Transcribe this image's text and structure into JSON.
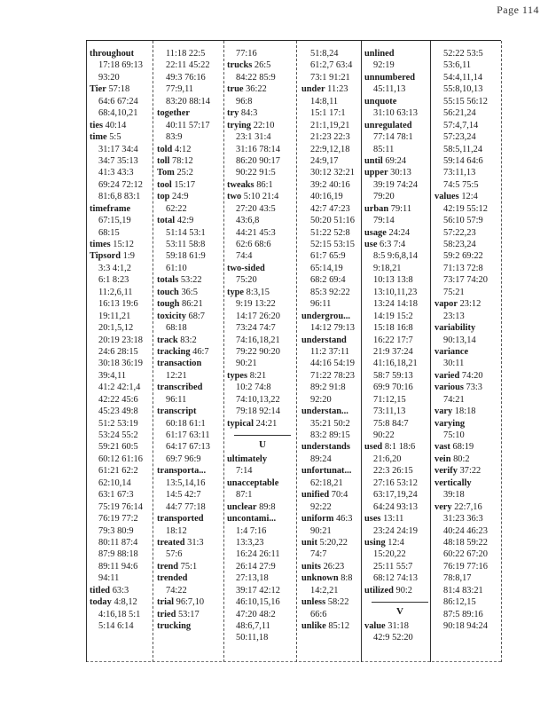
{
  "header": {
    "page_label": "Page 114"
  },
  "columns": [
    [
      {
        "term": "throughout",
        "refs": ""
      },
      {
        "refs": "17:18 69:13"
      },
      {
        "refs": "93:20"
      },
      {
        "term": "Tier",
        "refs": "57:18"
      },
      {
        "refs": "64:6 67:24"
      },
      {
        "refs": "68:4,10,21"
      },
      {
        "term": "ties",
        "refs": "40:14"
      },
      {
        "term": "time",
        "refs": "5:5"
      },
      {
        "refs": "31:17 34:4"
      },
      {
        "refs": "34:7 35:13"
      },
      {
        "refs": "41:3 43:3"
      },
      {
        "refs": "69:24 72:12"
      },
      {
        "refs": "81:6,8 83:1"
      },
      {
        "term": "timeframe",
        "refs": ""
      },
      {
        "refs": "67:15,19"
      },
      {
        "refs": "68:15"
      },
      {
        "term": "times",
        "refs": "15:12"
      },
      {
        "term": "Tipsord",
        "refs": "1:9"
      },
      {
        "refs": "3:3 4:1,2"
      },
      {
        "refs": "6:1 8:23"
      },
      {
        "refs": "11:2,6,11"
      },
      {
        "refs": "16:13 19:6"
      },
      {
        "refs": "19:11,21"
      },
      {
        "refs": "20:1,5,12"
      },
      {
        "refs": "20:19 23:18"
      },
      {
        "refs": "24:6 28:15"
      },
      {
        "refs": "30:18 36:19"
      },
      {
        "refs": "39:4,11"
      },
      {
        "refs": "41:2 42:1,4"
      },
      {
        "refs": "42:22 45:6"
      },
      {
        "refs": "45:23 49:8"
      },
      {
        "refs": "51:2 53:19"
      },
      {
        "refs": "53:24 55:2"
      },
      {
        "refs": "59:21 60:5"
      },
      {
        "refs": "60:12 61:16"
      },
      {
        "refs": "61:21 62:2"
      },
      {
        "refs": "62:10,14"
      },
      {
        "refs": "63:1 67:3"
      },
      {
        "refs": "75:19 76:14"
      },
      {
        "refs": "76:19 77:2"
      },
      {
        "refs": "79:3 80:9"
      },
      {
        "refs": "80:11 87:4"
      },
      {
        "refs": "87:9 88:18"
      },
      {
        "refs": "89:11 94:6"
      },
      {
        "refs": "94:11"
      },
      {
        "term": "titled",
        "refs": "63:3"
      },
      {
        "term": "today",
        "refs": "4:8,12"
      },
      {
        "refs": "4:16,18 5:1"
      },
      {
        "refs": "5:14 6:14"
      }
    ],
    [
      {
        "refs": "11:18 22:5"
      },
      {
        "refs": "22:11 45:22"
      },
      {
        "refs": "49:3 76:16"
      },
      {
        "refs": "77:9,11"
      },
      {
        "refs": "83:20 88:14"
      },
      {
        "term": "together",
        "refs": ""
      },
      {
        "refs": "40:11 57:17"
      },
      {
        "refs": "83:9"
      },
      {
        "term": "told",
        "refs": "4:12"
      },
      {
        "term": "toll",
        "refs": "78:12"
      },
      {
        "term": "Tom",
        "refs": "25:2"
      },
      {
        "term": "tool",
        "refs": "15:17"
      },
      {
        "term": "top",
        "refs": "24:9"
      },
      {
        "refs": "62:22"
      },
      {
        "term": "total",
        "refs": "42:9"
      },
      {
        "refs": "51:14 53:1"
      },
      {
        "refs": "53:11 58:8"
      },
      {
        "refs": "59:18 61:9"
      },
      {
        "refs": "61:10"
      },
      {
        "term": "totals",
        "refs": "53:22"
      },
      {
        "term": "touch",
        "refs": "36:5"
      },
      {
        "term": "tough",
        "refs": "86:21"
      },
      {
        "term": "toxicity",
        "refs": "68:7"
      },
      {
        "refs": "68:18"
      },
      {
        "term": "track",
        "refs": "83:2"
      },
      {
        "term": "tracking",
        "refs": "46:7"
      },
      {
        "term": "transaction",
        "refs": ""
      },
      {
        "refs": "12:21"
      },
      {
        "term": "transcribed",
        "refs": ""
      },
      {
        "refs": "96:11"
      },
      {
        "term": "transcript",
        "refs": ""
      },
      {
        "refs": "60:18 61:1"
      },
      {
        "refs": "61:17 63:11"
      },
      {
        "refs": "64:17 67:13"
      },
      {
        "refs": "69:7 96:9"
      },
      {
        "term": "transporta...",
        "refs": ""
      },
      {
        "refs": "13:5,14,16"
      },
      {
        "refs": "14:5 42:7"
      },
      {
        "refs": "44:7 77:18"
      },
      {
        "term": "transported",
        "refs": ""
      },
      {
        "refs": "18:12"
      },
      {
        "term": "treated",
        "refs": "31:3"
      },
      {
        "refs": "57:6"
      },
      {
        "term": "trend",
        "refs": "75:1"
      },
      {
        "term": "trended",
        "refs": ""
      },
      {
        "refs": "74:22"
      },
      {
        "term": "trial",
        "refs": "96:7,10"
      },
      {
        "term": "tried",
        "refs": "53:17"
      },
      {
        "term": "trucking",
        "refs": ""
      }
    ],
    [
      {
        "refs": "77:16"
      },
      {
        "term": "trucks",
        "refs": "26:5"
      },
      {
        "refs": "84:22 85:9"
      },
      {
        "term": "true",
        "refs": "36:22"
      },
      {
        "refs": "96:8"
      },
      {
        "term": "try",
        "refs": "84:3"
      },
      {
        "term": "trying",
        "refs": "22:10"
      },
      {
        "refs": "23:1 31:4"
      },
      {
        "refs": "31:16 78:14"
      },
      {
        "refs": "86:20 90:17"
      },
      {
        "refs": "90:22 91:5"
      },
      {
        "term": "tweaks",
        "refs": "86:1"
      },
      {
        "term": "two",
        "refs": "5:10 21:4"
      },
      {
        "refs": "27:20 43:5"
      },
      {
        "refs": "43:6,8"
      },
      {
        "refs": "44:21 45:3"
      },
      {
        "refs": "62:6 68:6"
      },
      {
        "refs": "74:4"
      },
      {
        "term": "two-sided",
        "refs": ""
      },
      {
        "refs": "75:20"
      },
      {
        "term": "type",
        "refs": "8:3,15"
      },
      {
        "refs": "9:19 13:22"
      },
      {
        "refs": "14:17 26:20"
      },
      {
        "refs": "73:24 74:7"
      },
      {
        "refs": "74:16,18,21"
      },
      {
        "refs": "79:22 90:20"
      },
      {
        "refs": "90:21"
      },
      {
        "term": "types",
        "refs": "8:21"
      },
      {
        "refs": "10:2 74:8"
      },
      {
        "refs": "74:10,13,22"
      },
      {
        "refs": "79:18 92:14"
      },
      {
        "term": "typical",
        "refs": "24:21"
      },
      {
        "section": "U"
      },
      {
        "term": "ultimately",
        "refs": ""
      },
      {
        "refs": "7:14"
      },
      {
        "term": "unacceptable",
        "refs": ""
      },
      {
        "refs": "87:1"
      },
      {
        "term": "unclear",
        "refs": "89:8"
      },
      {
        "term": "uncontami...",
        "refs": ""
      },
      {
        "refs": "1:4 7:16"
      },
      {
        "refs": "13:3,23"
      },
      {
        "refs": "16:24 26:11"
      },
      {
        "refs": "26:14 27:9"
      },
      {
        "refs": "27:13,18"
      },
      {
        "refs": "39:17 42:12"
      },
      {
        "refs": "46:10,15,16"
      },
      {
        "refs": "47:20 48:2"
      },
      {
        "refs": "48:6,7,11"
      },
      {
        "refs": "50:11,18"
      }
    ],
    [
      {
        "refs": "51:8,24"
      },
      {
        "refs": "61:2,7 63:4"
      },
      {
        "refs": "73:1 91:21"
      },
      {
        "term": "under",
        "refs": "11:23"
      },
      {
        "refs": "14:8,11"
      },
      {
        "refs": "15:1 17:1"
      },
      {
        "refs": "21:1,19,21"
      },
      {
        "refs": "21:23 22:3"
      },
      {
        "refs": "22:9,12,18"
      },
      {
        "refs": "24:9,17"
      },
      {
        "refs": "30:12 32:21"
      },
      {
        "refs": "39:2 40:16"
      },
      {
        "refs": "40:16,19"
      },
      {
        "refs": "42:7 47:23"
      },
      {
        "refs": "50:20 51:16"
      },
      {
        "refs": "51:22 52:8"
      },
      {
        "refs": "52:15 53:15"
      },
      {
        "refs": "61:7 65:9"
      },
      {
        "refs": "65:14,19"
      },
      {
        "refs": "68:2 69:4"
      },
      {
        "refs": "85:3 92:22"
      },
      {
        "refs": "96:11"
      },
      {
        "term": "undergrou...",
        "refs": ""
      },
      {
        "refs": "14:12 79:13"
      },
      {
        "term": "understand",
        "refs": ""
      },
      {
        "refs": "11:2 37:11"
      },
      {
        "refs": "44:16 54:19"
      },
      {
        "refs": "71:22 78:23"
      },
      {
        "refs": "89:2 91:8"
      },
      {
        "refs": "92:20"
      },
      {
        "term": "understan...",
        "refs": ""
      },
      {
        "refs": "35:21 50:2"
      },
      {
        "refs": "83:2 89:15"
      },
      {
        "term": "understands",
        "refs": ""
      },
      {
        "refs": "89:24"
      },
      {
        "term": "unfortunat...",
        "refs": ""
      },
      {
        "refs": "62:18,21"
      },
      {
        "term": "unified",
        "refs": "70:4"
      },
      {
        "refs": "92:22"
      },
      {
        "term": "uniform",
        "refs": "46:3"
      },
      {
        "refs": "90:21"
      },
      {
        "term": "unit",
        "refs": "5:20,22"
      },
      {
        "refs": "74:7"
      },
      {
        "term": "units",
        "refs": "26:23"
      },
      {
        "term": "unknown",
        "refs": "8:8"
      },
      {
        "refs": "14:2,21"
      },
      {
        "term": "unless",
        "refs": "58:22"
      },
      {
        "refs": "66:6"
      },
      {
        "term": "unlike",
        "refs": "85:12"
      }
    ],
    [
      {
        "term": "unlined",
        "refs": ""
      },
      {
        "refs": "92:19"
      },
      {
        "term": "unnumbered",
        "refs": ""
      },
      {
        "refs": "45:11,13"
      },
      {
        "term": "unquote",
        "refs": ""
      },
      {
        "refs": "31:10 63:13"
      },
      {
        "term": "unregulated",
        "refs": ""
      },
      {
        "refs": "77:14 78:1"
      },
      {
        "refs": "85:11"
      },
      {
        "term": "until",
        "refs": "69:24"
      },
      {
        "term": "upper",
        "refs": "30:13"
      },
      {
        "refs": "39:19 74:24"
      },
      {
        "refs": "79:20"
      },
      {
        "term": "urban",
        "refs": "79:11"
      },
      {
        "refs": "79:14"
      },
      {
        "term": "usage",
        "refs": "24:24"
      },
      {
        "term": "use",
        "refs": "6:3 7:4"
      },
      {
        "refs": "8:5 9:6,8,14"
      },
      {
        "refs": "9:18,21"
      },
      {
        "refs": "10:13 13:8"
      },
      {
        "refs": "13:10,11,23"
      },
      {
        "refs": "13:24 14:18"
      },
      {
        "refs": "14:19 15:2"
      },
      {
        "refs": "15:18 16:8"
      },
      {
        "refs": "16:22 17:7"
      },
      {
        "refs": "21:9 37:24"
      },
      {
        "refs": "41:16,18,21"
      },
      {
        "refs": "58:7 59:13"
      },
      {
        "refs": "69:9 70:16"
      },
      {
        "refs": "71:12,15"
      },
      {
        "refs": "73:11,13"
      },
      {
        "refs": "75:8 84:7"
      },
      {
        "refs": "90:22"
      },
      {
        "term": "used",
        "refs": "8:1 18:6"
      },
      {
        "refs": "21:6,20"
      },
      {
        "refs": "22:3 26:15"
      },
      {
        "refs": "27:16 53:12"
      },
      {
        "refs": "63:17,19,24"
      },
      {
        "refs": "64:24 93:13"
      },
      {
        "term": "uses",
        "refs": "13:11"
      },
      {
        "refs": "23:24 24:19"
      },
      {
        "term": "using",
        "refs": "12:4"
      },
      {
        "refs": "15:20,22"
      },
      {
        "refs": "25:11 55:7"
      },
      {
        "refs": "68:12 74:13"
      },
      {
        "term": "utilized",
        "refs": "90:2"
      },
      {
        "section": "V"
      },
      {
        "term": "value",
        "refs": "31:18"
      },
      {
        "refs": "42:9 52:20"
      }
    ],
    [
      {
        "refs": "52:22 53:5"
      },
      {
        "refs": "53:6,11"
      },
      {
        "refs": "54:4,11,14"
      },
      {
        "refs": "55:8,10,13"
      },
      {
        "refs": "55:15 56:12"
      },
      {
        "refs": "56:21,24"
      },
      {
        "refs": "57:4,7,14"
      },
      {
        "refs": "57:23,24"
      },
      {
        "refs": "58:5,11,24"
      },
      {
        "refs": "59:14 64:6"
      },
      {
        "refs": "73:11,13"
      },
      {
        "refs": "74:5 75:5"
      },
      {
        "term": "values",
        "refs": "12:4"
      },
      {
        "refs": "42:19 55:12"
      },
      {
        "refs": "56:10 57:9"
      },
      {
        "refs": "57:22,23"
      },
      {
        "refs": "58:23,24"
      },
      {
        "refs": "59:2 69:22"
      },
      {
        "refs": "71:13 72:8"
      },
      {
        "refs": "73:17 74:20"
      },
      {
        "refs": "75:21"
      },
      {
        "term": "vapor",
        "refs": "23:12"
      },
      {
        "refs": "23:13"
      },
      {
        "term": "variability",
        "refs": ""
      },
      {
        "refs": "90:13,14"
      },
      {
        "term": "variance",
        "refs": ""
      },
      {
        "refs": "30:11"
      },
      {
        "term": "varied",
        "refs": "74:20"
      },
      {
        "term": "various",
        "refs": "73:3"
      },
      {
        "refs": "74:21"
      },
      {
        "term": "vary",
        "refs": "18:18"
      },
      {
        "term": "varying",
        "refs": ""
      },
      {
        "refs": "75:10"
      },
      {
        "term": "vast",
        "refs": "68:19"
      },
      {
        "term": "vein",
        "refs": "80:2"
      },
      {
        "term": "verify",
        "refs": "37:22"
      },
      {
        "term": "vertically",
        "refs": ""
      },
      {
        "refs": "39:18"
      },
      {
        "term": "very",
        "refs": "22:7,16"
      },
      {
        "refs": "31:23 36:3"
      },
      {
        "refs": "40:24 46:23"
      },
      {
        "refs": "48:18 59:22"
      },
      {
        "refs": "60:22 67:20"
      },
      {
        "refs": "76:19 77:16"
      },
      {
        "refs": "78:8,17"
      },
      {
        "refs": "81:4 83:21"
      },
      {
        "refs": "86:12,15"
      },
      {
        "refs": "87:5 89:16"
      },
      {
        "refs": "90:18 94:24"
      }
    ]
  ]
}
